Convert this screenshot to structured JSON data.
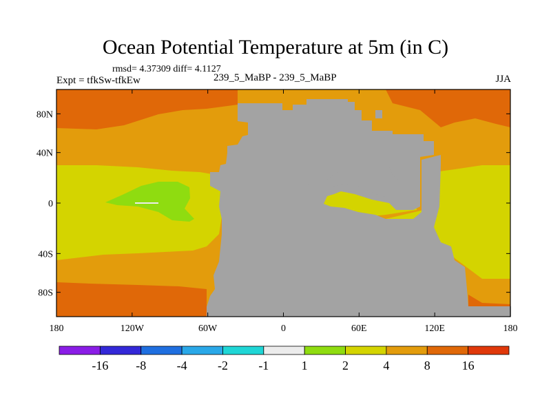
{
  "title": "Ocean Potential Temperature at 5m (in C)",
  "stats": "rmsd= 4.37309 diff= 4.1127",
  "left_label": "Expt = tfkSw-tfkEw",
  "center_label": "239_5_MaBP - 239_5_MaBP",
  "right_label": "JJA",
  "lat_ticks": [
    {
      "label": "80N",
      "lat": 80
    },
    {
      "label": "40N",
      "lat": 40
    },
    {
      "label": "0",
      "lat": 0
    },
    {
      "label": "40S",
      "lat": -40
    },
    {
      "label": "80S",
      "lat": -80
    }
  ],
  "lon_ticks": [
    {
      "label": "180",
      "lon": -180
    },
    {
      "label": "120W",
      "lon": -120
    },
    {
      "label": "60W",
      "lon": -60
    },
    {
      "label": "0",
      "lon": 0
    },
    {
      "label": "60E",
      "lon": 60
    },
    {
      "label": "120E",
      "lon": 120
    },
    {
      "label": "180",
      "lon": 180
    }
  ],
  "colorbar": {
    "colors": [
      "#8a1de6",
      "#3328d8",
      "#1f6fe0",
      "#2aa8e8",
      "#1fd6d6",
      "#ececec",
      "#8fdc10",
      "#d4d400",
      "#e39c0c",
      "#e06808",
      "#e0380a"
    ],
    "labels": [
      "-16",
      "-8",
      "-4",
      "-2",
      "-1",
      "1",
      "2",
      "4",
      "8",
      "16"
    ]
  },
  "colors": {
    "land": "#a3a3a3",
    "band_8_16": "#e06808",
    "band_4_8": "#e39c0c",
    "band_2_4": "#d4d400",
    "band_1_2": "#8fdc10",
    "band_neg": "#ececec"
  }
}
